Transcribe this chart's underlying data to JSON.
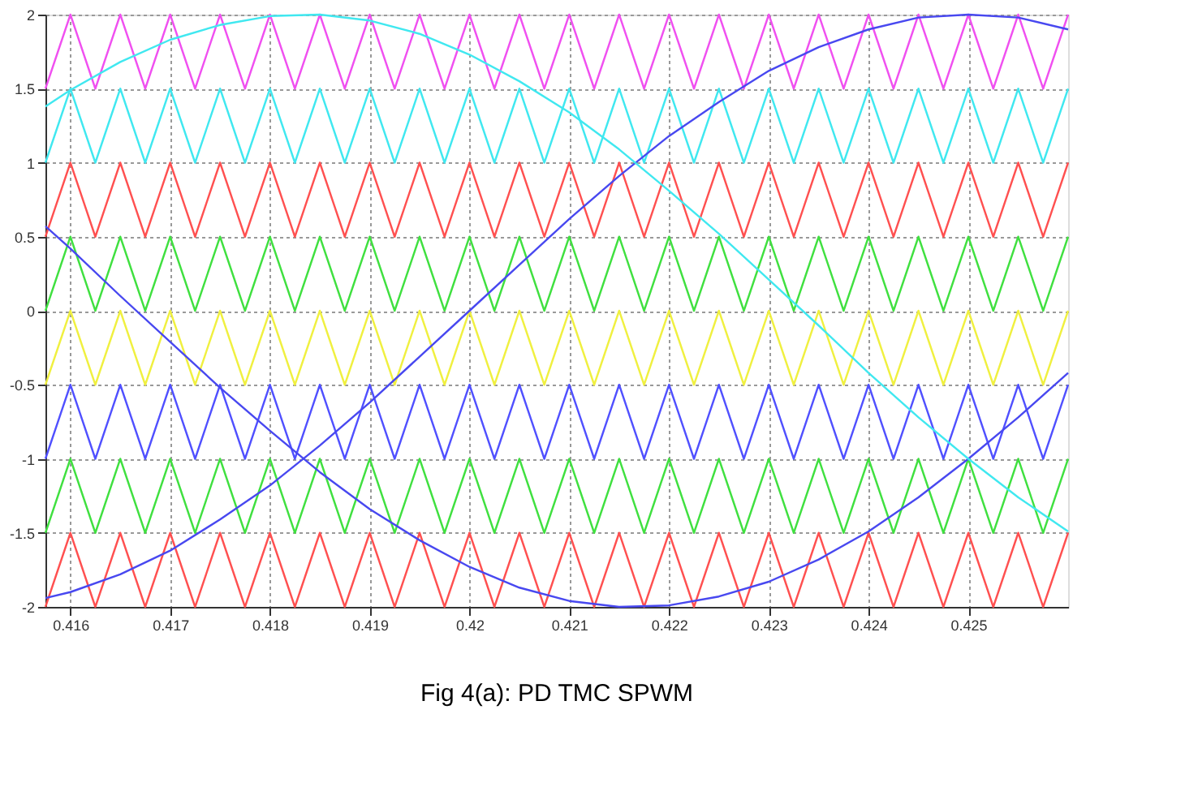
{
  "chart_data": {
    "type": "line",
    "title": "Fig 4(a):  PD TMC SPWM",
    "x": [
      0.41575,
      0.416,
      0.41625,
      0.4165,
      0.41675,
      0.417,
      0.41725,
      0.4175,
      0.41775,
      0.418,
      0.41825,
      0.4185,
      0.41875,
      0.419,
      0.41925,
      0.4195,
      0.41975,
      0.42,
      0.42025,
      0.4205,
      0.42075,
      0.421,
      0.42125,
      0.4215,
      0.42175,
      0.422,
      0.42225,
      0.4225,
      0.42275,
      0.423,
      0.42325,
      0.4235,
      0.42375,
      0.424,
      0.42425,
      0.4245,
      0.42475,
      0.425,
      0.42525,
      0.4255,
      0.42575,
      0.426
    ],
    "series": [
      {
        "color": "#f050f0",
        "values": [
          1.5,
          2,
          1.5,
          2,
          1.5,
          2,
          1.5,
          2,
          1.5,
          2,
          1.5,
          2,
          1.5,
          2,
          1.5,
          2,
          1.5,
          2,
          1.5,
          2,
          1.5,
          2,
          1.5,
          2,
          1.5,
          2,
          1.5,
          2,
          1.5,
          2,
          1.5,
          2,
          1.5,
          2,
          1.5,
          2,
          1.5,
          2,
          1.5,
          2,
          1.5,
          2
        ]
      },
      {
        "color": "#40e8f0",
        "values": [
          1,
          1.5,
          1,
          1.5,
          1,
          1.5,
          1,
          1.5,
          1,
          1.5,
          1,
          1.5,
          1,
          1.5,
          1,
          1.5,
          1,
          1.5,
          1,
          1.5,
          1,
          1.5,
          1,
          1.5,
          1,
          1.5,
          1,
          1.5,
          1,
          1.5,
          1,
          1.5,
          1,
          1.5,
          1,
          1.5,
          1,
          1.5,
          1,
          1.5,
          1,
          1.5
        ]
      },
      {
        "color": "#ff5050",
        "values": [
          0.5,
          1,
          0.5,
          1,
          0.5,
          1,
          0.5,
          1,
          0.5,
          1,
          0.5,
          1,
          0.5,
          1,
          0.5,
          1,
          0.5,
          1,
          0.5,
          1,
          0.5,
          1,
          0.5,
          1,
          0.5,
          1,
          0.5,
          1,
          0.5,
          1,
          0.5,
          1,
          0.5,
          1,
          0.5,
          1,
          0.5,
          1,
          0.5,
          1,
          0.5,
          1
        ]
      },
      {
        "color": "#40e040",
        "values": [
          0,
          0.5,
          0,
          0.5,
          0,
          0.5,
          0,
          0.5,
          0,
          0.5,
          0,
          0.5,
          0,
          0.5,
          0,
          0.5,
          0,
          0.5,
          0,
          0.5,
          0,
          0.5,
          0,
          0.5,
          0,
          0.5,
          0,
          0.5,
          0,
          0.5,
          0,
          0.5,
          0,
          0.5,
          0,
          0.5,
          0,
          0.5,
          0,
          0.5,
          0,
          0.5
        ]
      },
      {
        "color": "#f0f040",
        "values": [
          -0.5,
          0,
          -0.5,
          0,
          -0.5,
          0,
          -0.5,
          0,
          -0.5,
          0,
          -0.5,
          0,
          -0.5,
          0,
          -0.5,
          0,
          -0.5,
          0,
          -0.5,
          0,
          -0.5,
          0,
          -0.5,
          0,
          -0.5,
          0,
          -0.5,
          0,
          -0.5,
          0,
          -0.5,
          0,
          -0.5,
          0,
          -0.5,
          0,
          -0.5,
          0,
          -0.5,
          0,
          -0.5,
          0
        ]
      },
      {
        "color": "#5050ff",
        "values": [
          -1,
          -0.5,
          -1,
          -0.5,
          -1,
          -0.5,
          -1,
          -0.5,
          -1,
          -0.5,
          -1,
          -0.5,
          -1,
          -0.5,
          -1,
          -0.5,
          -1,
          -0.5,
          -1,
          -0.5,
          -1,
          -0.5,
          -1,
          -0.5,
          -1,
          -0.5,
          -1,
          -0.5,
          -1,
          -0.5,
          -1,
          -0.5,
          -1,
          -0.5,
          -1,
          -0.5,
          -1,
          -0.5,
          -1,
          -0.5,
          -1,
          -0.5
        ]
      },
      {
        "color": "#40e040",
        "values": [
          -1.5,
          -1,
          -1.5,
          -1,
          -1.5,
          -1,
          -1.5,
          -1,
          -1.5,
          -1,
          -1.5,
          -1,
          -1.5,
          -1,
          -1.5,
          -1,
          -1.5,
          -1,
          -1.5,
          -1,
          -1.5,
          -1,
          -1.5,
          -1,
          -1.5,
          -1,
          -1.5,
          -1,
          -1.5,
          -1,
          -1.5,
          -1,
          -1.5,
          -1,
          -1.5,
          -1,
          -1.5,
          -1,
          -1.5,
          -1,
          -1.5,
          -1
        ]
      },
      {
        "color": "#ff5050",
        "values": [
          -2,
          -1.5,
          -2,
          -1.5,
          -2,
          -1.5,
          -2,
          -1.5,
          -2,
          -1.5,
          -2,
          -1.5,
          -2,
          -1.5,
          -2,
          -1.5,
          -2,
          -1.5,
          -2,
          -1.5,
          -2,
          -1.5,
          -2,
          -1.5,
          -2,
          -1.5,
          -2,
          -1.5,
          -2,
          -1.5,
          -2,
          -1.5,
          -2,
          -1.5,
          -2,
          -1.5,
          -2,
          -1.5,
          -2,
          -1.5,
          -2,
          -1.5
        ]
      },
      {
        "color": "#4848f0",
        "x": [
          0.41575,
          0.416,
          0.4165,
          0.417,
          0.4175,
          0.418,
          0.4185,
          0.419,
          0.4195,
          0.42,
          0.4205,
          0.421,
          0.4215,
          0.422,
          0.4225,
          0.423,
          0.4235,
          0.424,
          0.4245,
          0.425,
          0.4255,
          0.426
        ],
        "values": [
          -1.94,
          -1.9,
          -1.78,
          -1.62,
          -1.41,
          -1.18,
          -0.91,
          -0.62,
          -0.31,
          0,
          0.31,
          0.62,
          0.91,
          1.18,
          1.41,
          1.62,
          1.78,
          1.9,
          1.98,
          2,
          1.98,
          1.9
        ]
      },
      {
        "color": "#4848f0",
        "x": [
          0.41575,
          0.416,
          0.4165,
          0.417,
          0.4175,
          0.418,
          0.4185,
          0.419,
          0.4195,
          0.42,
          0.4205,
          0.421,
          0.4215,
          0.422,
          0.4225,
          0.423,
          0.4235,
          0.424,
          0.4245,
          0.425,
          0.4255,
          0.426
        ],
        "values": [
          0.57,
          0.42,
          0.1,
          -0.21,
          -0.52,
          -0.81,
          -1.09,
          -1.34,
          -1.55,
          -1.73,
          -1.87,
          -1.96,
          -2,
          -1.99,
          -1.93,
          -1.83,
          -1.68,
          -1.49,
          -1.26,
          -1,
          -0.72,
          -0.42
        ]
      },
      {
        "color": "#40e8f0",
        "x": [
          0.41575,
          0.416,
          0.4165,
          0.417,
          0.4175,
          0.418,
          0.4185,
          0.419,
          0.4195,
          0.42,
          0.4205,
          0.421,
          0.4215,
          0.422,
          0.4225,
          0.423,
          0.4235,
          0.424,
          0.4245,
          0.425,
          0.4255,
          0.426
        ],
        "values": [
          1.38,
          1.49,
          1.68,
          1.83,
          1.93,
          1.99,
          2,
          1.96,
          1.87,
          1.73,
          1.55,
          1.34,
          1.09,
          0.81,
          0.52,
          0.21,
          -0.1,
          -0.42,
          -0.72,
          -1,
          -1.26,
          -1.49
        ]
      }
    ],
    "xlim": [
      0.41575,
      0.426
    ],
    "xticks": [
      0.416,
      0.417,
      0.418,
      0.419,
      0.42,
      0.421,
      0.422,
      0.423,
      0.424,
      0.425
    ],
    "ylim": [
      -2,
      2
    ],
    "yticks": [
      -2,
      -1.5,
      -1,
      -0.5,
      0,
      0.5,
      1,
      1.5,
      2
    ],
    "grid": true,
    "legend": false,
    "line_style": "solid"
  }
}
